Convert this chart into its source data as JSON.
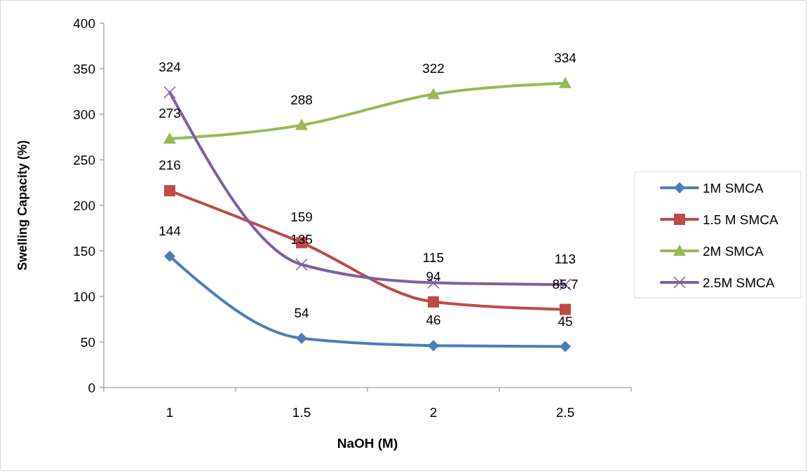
{
  "chart_data": {
    "type": "line",
    "xlabel": "NaOH (M)",
    "ylabel": "Swelling Capacity (%)",
    "categories": [
      "1",
      "1.5",
      "2",
      "2.5"
    ],
    "ylim": [
      0,
      400
    ],
    "yticks": [
      0,
      50,
      100,
      150,
      200,
      250,
      300,
      350,
      400
    ],
    "grid": false,
    "legend": "right",
    "data_labels": true,
    "line_style": "solid",
    "series": [
      {
        "name": "1M SMCA",
        "color": "#4a7ebb",
        "marker": "diamond",
        "values": [
          144,
          54,
          46,
          45
        ]
      },
      {
        "name": "1.5 M SMCA",
        "color": "#be4b48",
        "marker": "square",
        "values": [
          216,
          159,
          94,
          85.7
        ]
      },
      {
        "name": "2M SMCA",
        "color": "#98b954",
        "marker": "triangle",
        "values": [
          273,
          288,
          322,
          334
        ]
      },
      {
        "name": "2.5M SMCA",
        "color": "#7d60a0",
        "marker": "cross",
        "values": [
          324,
          135,
          115,
          113
        ]
      }
    ]
  }
}
